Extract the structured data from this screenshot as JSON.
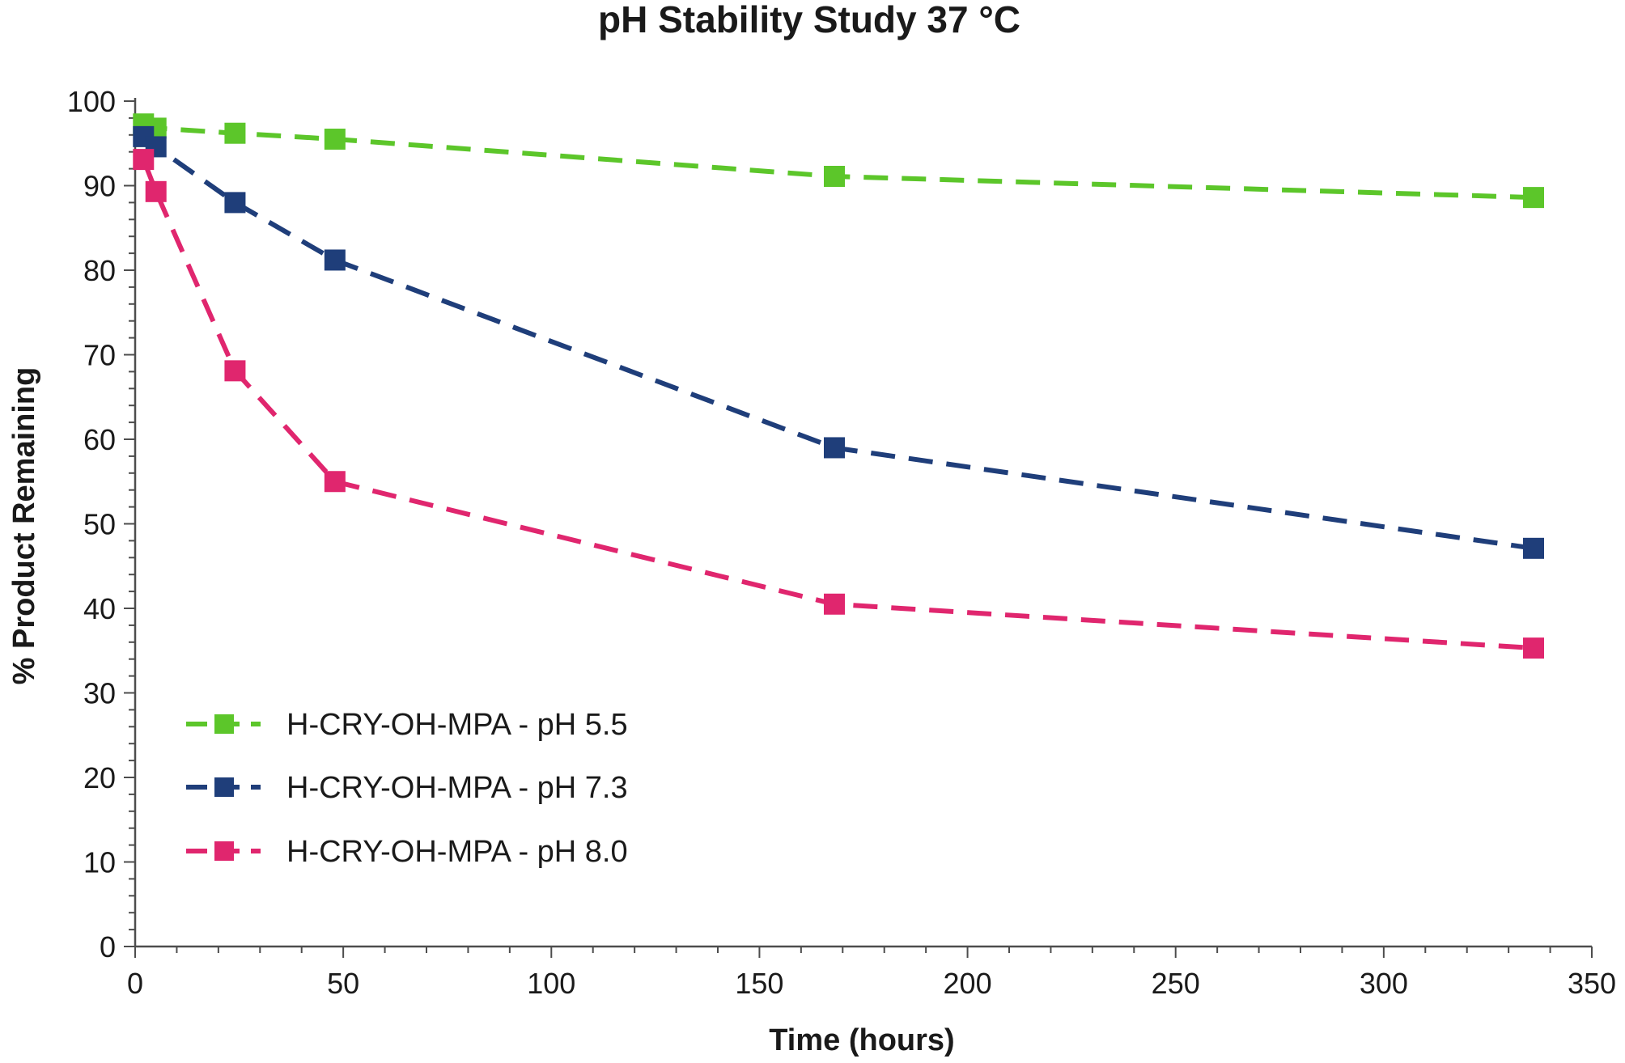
{
  "chart_data": {
    "type": "line",
    "title": "pH Stability Study 37 °C",
    "xlabel": "Time (hours)",
    "ylabel": "% Product Remaining",
    "xlim": [
      0,
      350
    ],
    "ylim": [
      0,
      100
    ],
    "x_ticks": [
      0,
      50,
      100,
      150,
      200,
      250,
      300,
      350
    ],
    "y_ticks": [
      0,
      10,
      20,
      30,
      40,
      50,
      60,
      70,
      80,
      90,
      100
    ],
    "grid": false,
    "legend_position": "bottom-left",
    "marker": "square",
    "line_style": "dashed",
    "series": [
      {
        "name": "H-CRY-OH-MPA - pH 5.5",
        "color": "#5cc62a",
        "x": [
          2,
          5,
          24,
          48,
          168,
          336
        ],
        "y": [
          97.3,
          96.8,
          96.2,
          95.5,
          91.1,
          88.6
        ]
      },
      {
        "name": "H-CRY-OH-MPA - pH 7.3",
        "color": "#1f3e7a",
        "x": [
          2,
          5,
          24,
          48,
          168,
          336
        ],
        "y": [
          95.8,
          94.6,
          88.0,
          81.2,
          59.0,
          47.1
        ]
      },
      {
        "name": "H-CRY-OH-MPA - pH 8.0",
        "color": "#e0266e",
        "x": [
          2,
          5,
          24,
          48,
          168,
          336
        ],
        "y": [
          93.1,
          89.3,
          68.1,
          55.0,
          40.5,
          35.3
        ]
      }
    ]
  }
}
